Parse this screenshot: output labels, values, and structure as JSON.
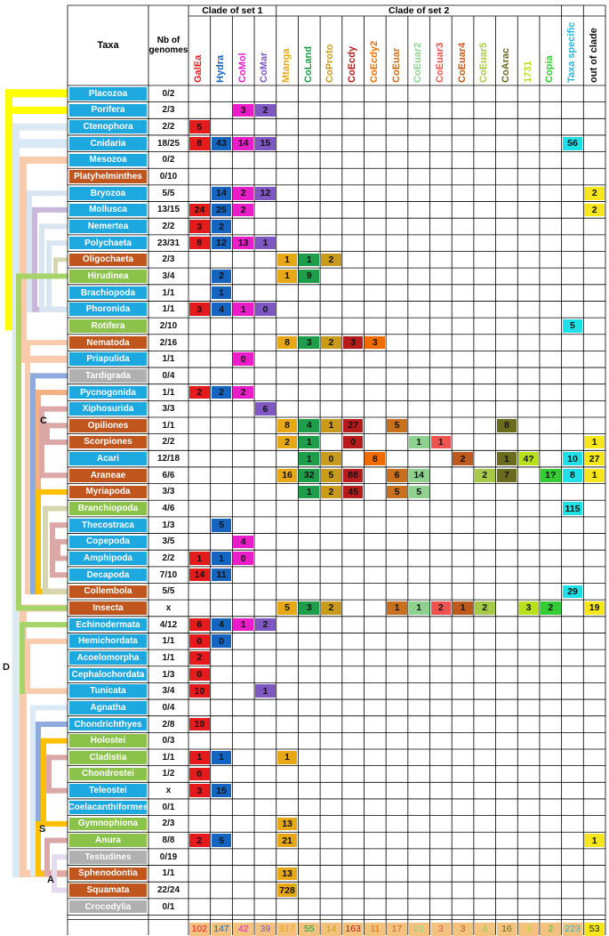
{
  "header": {
    "taxa": "Taxa",
    "nb_genomes": "Nb of genomes",
    "set1": "Clade of set 1",
    "set2": "Clade of set 2"
  },
  "columns": [
    {
      "name": "GalEa",
      "color": "#e41a1c"
    },
    {
      "name": "Hydra",
      "color": "#1565c0"
    },
    {
      "name": "CoMol",
      "color": "#e91ec9"
    },
    {
      "name": "CoMar",
      "color": "#7e57c2"
    },
    {
      "name": "Mtanga",
      "color": "#e6a817"
    },
    {
      "name": "CoLand",
      "color": "#1e9e4a"
    },
    {
      "name": "CoProto",
      "color": "#c89b1e"
    },
    {
      "name": "CoEcdy",
      "color": "#b71c1c"
    },
    {
      "name": "CoEcdy2",
      "color": "#ef6c00"
    },
    {
      "name": "CoEuar",
      "color": "#c8701e"
    },
    {
      "name": "CoEuar2",
      "color": "#8fd18f"
    },
    {
      "name": "CoEuar3",
      "color": "#ef5350"
    },
    {
      "name": "CoEuar4",
      "color": "#bf5a1e"
    },
    {
      "name": "CoEuar5",
      "color": "#a6c94a"
    },
    {
      "name": "CoArac",
      "color": "#6b6b1e"
    },
    {
      "name": "1731",
      "color": "#b8e01e"
    },
    {
      "name": "Copia",
      "color": "#33cc33"
    },
    {
      "name": "Taxa specific",
      "color": "#29b6d6"
    },
    {
      "name": "out of clade",
      "color": "#111111"
    }
  ],
  "rows": [
    {
      "taxon": "Placozoa",
      "nb": "0/2",
      "color": "#1ea8e0",
      "cells": {}
    },
    {
      "taxon": "Porifera",
      "nb": "2/3",
      "color": "#1ea8e0",
      "cells": {
        "CoMol": "3",
        "CoMar": "2"
      }
    },
    {
      "taxon": "Ctenophora",
      "nb": "2/2",
      "color": "#1ea8e0",
      "cells": {
        "GalEa": "5"
      }
    },
    {
      "taxon": "Cnidaria",
      "nb": "18/25",
      "color": "#1ea8e0",
      "cells": {
        "GalEa": "8",
        "Hydra": "43",
        "CoMol": "14",
        "CoMar": "15",
        "Taxa specific": "56"
      }
    },
    {
      "taxon": "Mesozoa",
      "nb": "0/2",
      "color": "#1ea8e0",
      "cells": {}
    },
    {
      "taxon": "Platyhelminthes",
      "nb": "0/10",
      "color": "#c0561e",
      "cells": {}
    },
    {
      "taxon": "Bryozoa",
      "nb": "5/5",
      "color": "#1ea8e0",
      "cells": {
        "Hydra": "14",
        "CoMol": "2",
        "CoMar": "12",
        "out of clade": "2"
      }
    },
    {
      "taxon": "Mollusca",
      "nb": "13/15",
      "color": "#1ea8e0",
      "cells": {
        "GalEa": "24",
        "Hydra": "25",
        "CoMol": "2",
        "out of clade": "2"
      }
    },
    {
      "taxon": "Nemertea",
      "nb": "2/2",
      "color": "#1ea8e0",
      "cells": {
        "GalEa": "3",
        "Hydra": "2"
      }
    },
    {
      "taxon": "Polychaeta",
      "nb": "23/31",
      "color": "#1ea8e0",
      "cells": {
        "GalEa": "8",
        "Hydra": "12",
        "CoMol": "13",
        "CoMar": "1"
      }
    },
    {
      "taxon": "Oligochaeta",
      "nb": "2/3",
      "color": "#c0561e",
      "cells": {
        "Mtanga": "1",
        "CoLand": "1",
        "CoProto": "2"
      }
    },
    {
      "taxon": "Hirudinea",
      "nb": "3/4",
      "color": "#8bc34a",
      "cells": {
        "Hydra": "2",
        "Mtanga": "1",
        "CoLand": "9"
      }
    },
    {
      "taxon": "Brachiopoda",
      "nb": "1/1",
      "color": "#1ea8e0",
      "cells": {
        "Hydra": "1"
      }
    },
    {
      "taxon": "Phoronida",
      "nb": "1/1",
      "color": "#1ea8e0",
      "cells": {
        "GalEa": "3",
        "Hydra": "4",
        "CoMol": "1",
        "CoMar": "0"
      }
    },
    {
      "taxon": "Rotifera",
      "nb": "2/10",
      "color": "#8bc34a",
      "cells": {
        "Taxa specific": "5"
      }
    },
    {
      "taxon": "Nematoda",
      "nb": "2/16",
      "color": "#c0561e",
      "cells": {
        "Mtanga": "8",
        "CoLand": "3",
        "CoProto": "2",
        "CoEcdy": "3",
        "CoEcdy2": "3"
      }
    },
    {
      "taxon": "Priapulida",
      "nb": "1/1",
      "color": "#1ea8e0",
      "cells": {
        "CoMol": "0"
      }
    },
    {
      "taxon": "Tardigrada",
      "nb": "0/4",
      "color": "#b0b0b0",
      "cells": {}
    },
    {
      "taxon": "Pycnogonida",
      "nb": "1/1",
      "color": "#1ea8e0",
      "cells": {
        "GalEa": "2",
        "Hydra": "2",
        "CoMol": "2"
      }
    },
    {
      "taxon": "Xiphosurida",
      "nb": "3/3",
      "color": "#1ea8e0",
      "cells": {
        "CoMar": "6"
      }
    },
    {
      "taxon": "Opiliones",
      "nb": "1/1",
      "color": "#c0561e",
      "cells": {
        "Mtanga": "8",
        "CoLand": "4",
        "CoProto": "1",
        "CoEcdy": "27",
        "CoEuar": "5",
        "CoArac": "8"
      }
    },
    {
      "taxon": "Scorpiones",
      "nb": "2/2",
      "color": "#c0561e",
      "cells": {
        "Mtanga": "2",
        "CoLand": "1",
        "CoEcdy": "0",
        "CoEuar2": "1",
        "CoEuar3": "1",
        "out of clade": "1"
      }
    },
    {
      "taxon": "Acari",
      "nb": "12/18",
      "color": "#1ea8e0",
      "cells": {
        "CoLand": "1",
        "CoProto": "0",
        "CoEcdy2": "8",
        "CoEuar4": "2",
        "CoArac": "1",
        "1731": "4?",
        "Taxa specific": "10",
        "out of clade": "27"
      }
    },
    {
      "taxon": "Araneae",
      "nb": "6/6",
      "color": "#c0561e",
      "cells": {
        "Mtanga": "16",
        "CoLand": "32",
        "CoProto": "5",
        "CoEcdy": "88",
        "CoEuar": "6",
        "CoEuar2": "14",
        "CoEuar5": "2",
        "CoArac": "7",
        "Copia": "1?",
        "Taxa specific": "8",
        "out of clade": "1"
      }
    },
    {
      "taxon": "Myriapoda",
      "nb": "3/3",
      "color": "#c0561e",
      "cells": {
        "CoLand": "1",
        "CoProto": "2",
        "CoEcdy": "45",
        "CoEuar": "5",
        "CoEuar2": "5"
      }
    },
    {
      "taxon": "Branchiopoda",
      "nb": "4/6",
      "color": "#8bc34a",
      "cells": {
        "Taxa specific": "115"
      }
    },
    {
      "taxon": "Thecostraca",
      "nb": "1/3",
      "color": "#1ea8e0",
      "cells": {
        "Hydra": "5"
      }
    },
    {
      "taxon": "Copepoda",
      "nb": "3/5",
      "color": "#1ea8e0",
      "cells": {
        "CoMol": "4"
      }
    },
    {
      "taxon": "Amphipoda",
      "nb": "2/2",
      "color": "#1ea8e0",
      "cells": {
        "GalEa": "1",
        "Hydra": "1",
        "CoMol": "0"
      }
    },
    {
      "taxon": "Decapoda",
      "nb": "7/10",
      "color": "#1ea8e0",
      "cells": {
        "GalEa": "14",
        "Hydra": "11"
      }
    },
    {
      "taxon": "Collembola",
      "nb": "5/5",
      "color": "#c0561e",
      "cells": {
        "Taxa specific": "29"
      }
    },
    {
      "taxon": "Insecta",
      "nb": "x",
      "color": "#c0561e",
      "cells": {
        "Mtanga": "5",
        "CoLand": "3",
        "CoProto": "2",
        "CoEuar": "1",
        "CoEuar2": "1",
        "CoEuar3": "2",
        "CoEuar4": "1",
        "CoEuar5": "2",
        "1731": "3",
        "Copia": "2",
        "out of clade": "19"
      }
    },
    {
      "taxon": "Echinodermata",
      "nb": "4/12",
      "color": "#1ea8e0",
      "cells": {
        "GalEa": "6",
        "Hydra": "4",
        "CoMol": "1",
        "CoMar": "2"
      }
    },
    {
      "taxon": "Hemichordata",
      "nb": "1/1",
      "color": "#1ea8e0",
      "cells": {
        "GalEa": "0",
        "Hydra": "0"
      }
    },
    {
      "taxon": "Acoelomorpha",
      "nb": "1/1",
      "color": "#1ea8e0",
      "cells": {
        "GalEa": "2"
      }
    },
    {
      "taxon": "Cephalochordata",
      "nb": "1/3",
      "color": "#1ea8e0",
      "cells": {
        "GalEa": "0"
      }
    },
    {
      "taxon": "Tunicata",
      "nb": "3/4",
      "color": "#1ea8e0",
      "cells": {
        "GalEa": "10",
        "CoMar": "1"
      }
    },
    {
      "taxon": "Agnatha",
      "nb": "0/4",
      "color": "#1ea8e0",
      "cells": {}
    },
    {
      "taxon": "Chondrichthyes",
      "nb": "2/8",
      "color": "#1ea8e0",
      "cells": {
        "GalEa": "10"
      }
    },
    {
      "taxon": "Holostei",
      "nb": "0/3",
      "color": "#8bc34a",
      "cells": {}
    },
    {
      "taxon": "Cladistia",
      "nb": "1/1",
      "color": "#8bc34a",
      "cells": {
        "GalEa": "1",
        "Hydra": "1",
        "Mtanga": "1"
      }
    },
    {
      "taxon": "Chondrostei",
      "nb": "1/2",
      "color": "#8bc34a",
      "cells": {
        "GalEa": "0"
      }
    },
    {
      "taxon": "Teleostei",
      "nb": "x",
      "color": "#1ea8e0",
      "cells": {
        "GalEa": "3",
        "Hydra": "15"
      }
    },
    {
      "taxon": "Coelacanthiformes",
      "nb": "0/1",
      "color": "#1ea8e0",
      "cells": {}
    },
    {
      "taxon": "Gymnophiona",
      "nb": "2/3",
      "color": "#8bc34a",
      "cells": {
        "Mtanga": "13"
      }
    },
    {
      "taxon": "Anura",
      "nb": "8/8",
      "color": "#8bc34a",
      "cells": {
        "GalEa": "2",
        "Hydra": "5",
        "Mtanga": "21",
        "out of clade": "1"
      }
    },
    {
      "taxon": "Testudines",
      "nb": "0/19",
      "color": "#b0b0b0",
      "cells": {}
    },
    {
      "taxon": "Sphenodontia",
      "nb": "1/1",
      "color": "#c0561e",
      "cells": {
        "Mtanga": "13"
      }
    },
    {
      "taxon": "Squamata",
      "nb": "22/24",
      "color": "#c0561e",
      "cells": {
        "Mtanga": "728"
      }
    },
    {
      "taxon": "Crocodylia",
      "nb": "0/1",
      "color": "#b0b0b0",
      "cells": {}
    }
  ],
  "totals": {
    "GalEa": "102",
    "Hydra": "147",
    "CoMol": "42",
    "CoMar": "39",
    "Mtanga": "817",
    "CoLand": "55",
    "CoProto": "14",
    "CoEcdy": "163",
    "CoEcdy2": "11",
    "CoEuar": "17",
    "CoEuar2": "21",
    "CoEuar3": "3",
    "CoEuar4": "3",
    "CoEuar5": "4",
    "CoArac": "16",
    "1731": "3",
    "Copia": "2",
    "Taxa specific": "223",
    "out of clade": "53"
  },
  "tree_labels": [
    "C",
    "D",
    "S",
    "A"
  ]
}
